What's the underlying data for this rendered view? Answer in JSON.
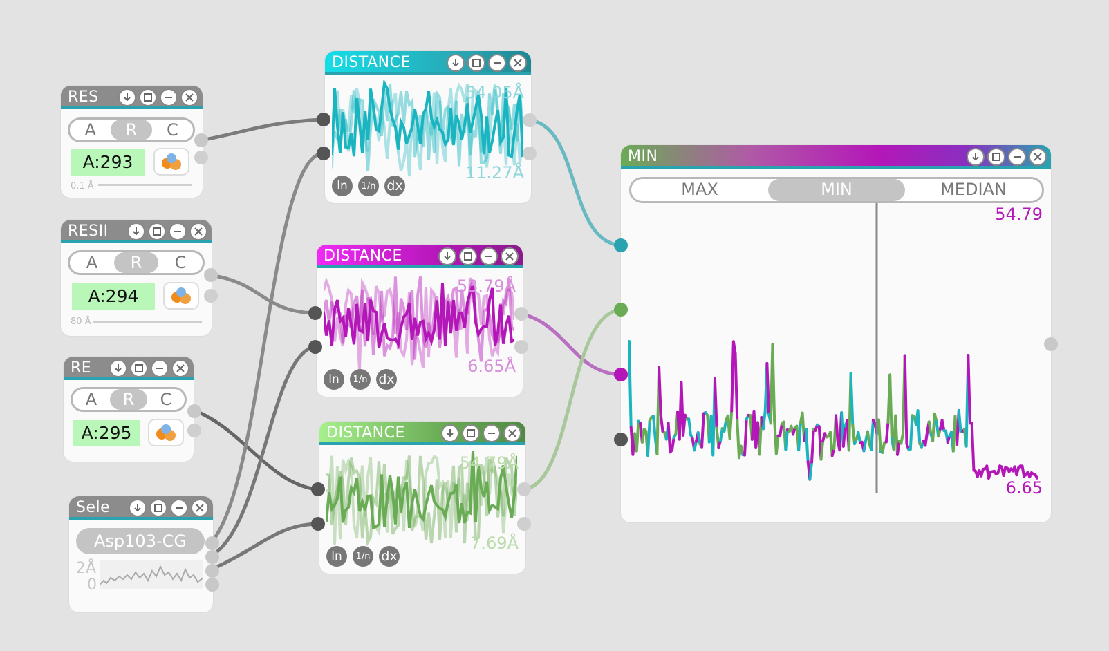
{
  "residue_nodes": [
    {
      "title": "RES",
      "segments": [
        "A",
        "R",
        "C"
      ],
      "selected": "R",
      "residue": "A:293",
      "axis_text": "0.1 Å"
    },
    {
      "title": "RESII",
      "segments": [
        "A",
        "R",
        "C"
      ],
      "selected": "R",
      "residue": "A:294",
      "axis_text": "80 Å"
    },
    {
      "title": "RE",
      "segments": [
        "A",
        "R",
        "C"
      ],
      "selected": "R",
      "residue": "A:295",
      "axis_text": ""
    }
  ],
  "selection_node": {
    "title": "Sele",
    "atom": "Asp103-CG",
    "axis_max": "2Å",
    "axis_min": "0"
  },
  "distance_nodes": [
    {
      "title": "DISTANCE",
      "max_value": "54.05Å",
      "min_value": "11.27Å",
      "tools": [
        "ln",
        "1/n",
        "dx"
      ],
      "color": "#1ab5c0"
    },
    {
      "title": "DISTANCE",
      "max_value": "53.79Å",
      "min_value": "6.65Å",
      "tools": [
        "ln",
        "1/n",
        "dx"
      ],
      "color": "#b417b8"
    },
    {
      "title": "DISTANCE",
      "max_value": "54.79Å",
      "min_value": "7.69Å",
      "tools": [
        "ln",
        "1/n",
        "dx"
      ],
      "color": "#6aab55"
    }
  ],
  "min_node": {
    "title": "MIN",
    "tabs": [
      "MAX",
      "MIN",
      "MEDIAN"
    ],
    "active_tab": "MIN",
    "max_value": "54.79",
    "min_value": "6.65",
    "value_color": "#b417b8"
  },
  "icons": {
    "title_buttons": [
      "download-icon",
      "restore-icon",
      "minimize-icon",
      "close-icon"
    ],
    "molecule": "molecule-icon"
  },
  "colors": {
    "cyan": "#1ab5c0",
    "magenta": "#b417b8",
    "green": "#6aab55",
    "wire": "#777777"
  }
}
